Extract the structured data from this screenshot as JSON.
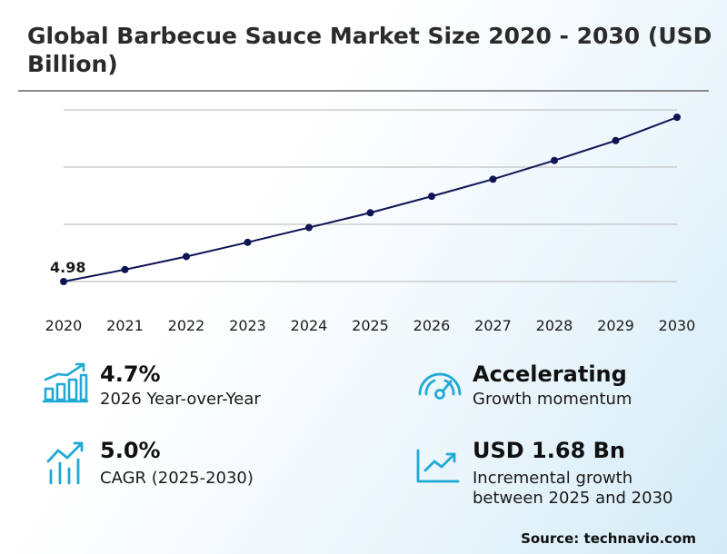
{
  "title": "Global Barbecue Sauce Market Size 2020 - 2030 (USD Billion)",
  "chart_data": {
    "type": "line",
    "title": "Global Barbecue Sauce Market Size 2020 - 2030 (USD Billion)",
    "x": [
      "2020",
      "2021",
      "2022",
      "2023",
      "2024",
      "2025",
      "2026",
      "2027",
      "2028",
      "2029",
      "2030"
    ],
    "series": [
      {
        "values": [
          4.98,
          5.19,
          5.42,
          5.67,
          5.93,
          6.19,
          6.48,
          6.78,
          7.11,
          7.46,
          7.87
        ]
      }
    ],
    "data_labels": [
      {
        "index": 0,
        "text": "4.98"
      }
    ],
    "ylim": [
      4.98,
      8.0
    ],
    "grid": true,
    "legend": "none",
    "line_color": "#0e1354"
  },
  "stats": [
    {
      "value": "4.7%",
      "desc": "2026 Year-over-Year",
      "icon": "bar-chart-growth-icon"
    },
    {
      "value": "Accelerating",
      "desc": "Growth momentum",
      "icon": "speedometer-icon"
    },
    {
      "value": "5.0%",
      "desc": "CAGR (2025-2030)",
      "icon": "trend-bars-icon"
    },
    {
      "value": "USD 1.68 Bn",
      "desc_line1": "Incremental growth",
      "desc_line2": "between 2025 and 2030",
      "icon": "line-chart-up-icon"
    }
  ],
  "source": "Source: technavio.com",
  "accent_color": "#1fa9d4"
}
